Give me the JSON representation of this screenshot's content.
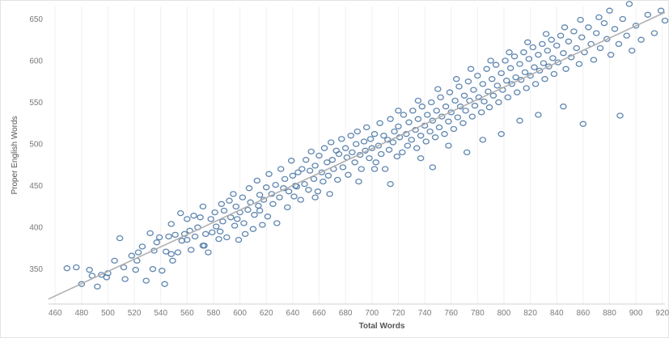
{
  "chart_data": {
    "type": "scatter",
    "title": "",
    "xlabel": "Total Words",
    "ylabel": "Proper English Words",
    "xlim": [
      455,
      922
    ],
    "ylim": [
      308,
      665
    ],
    "xticks": [
      460,
      480,
      500,
      520,
      540,
      560,
      580,
      600,
      620,
      640,
      660,
      680,
      700,
      720,
      740,
      760,
      780,
      800,
      820,
      840,
      860,
      880,
      900,
      920
    ],
    "yticks": [
      350,
      400,
      450,
      500,
      550,
      600,
      650
    ],
    "grid": "vertical",
    "legend": "none",
    "colors": {
      "points": "#4e79a7",
      "trend": "#b0b0b0",
      "axis": "#d0d0d0",
      "grid": "#f0f0f0"
    },
    "trend_line": {
      "x": [
        455,
        922
      ],
      "y": [
        314,
        658
      ]
    },
    "series": [
      {
        "points": [
          [
            469,
            351
          ],
          [
            476,
            352
          ],
          [
            480,
            332
          ],
          [
            486,
            349
          ],
          [
            492,
            329
          ],
          [
            495,
            343
          ],
          [
            499,
            340
          ],
          [
            505,
            360
          ],
          [
            509,
            387
          ],
          [
            513,
            338
          ],
          [
            518,
            366
          ],
          [
            521,
            349
          ],
          [
            523,
            370
          ],
          [
            526,
            377
          ],
          [
            529,
            336
          ],
          [
            532,
            393
          ],
          [
            534,
            350
          ],
          [
            537,
            382
          ],
          [
            539,
            388
          ],
          [
            541,
            348
          ],
          [
            543,
            332
          ],
          [
            544,
            371
          ],
          [
            546,
            389
          ],
          [
            548,
            404
          ],
          [
            549,
            360
          ],
          [
            551,
            391
          ],
          [
            553,
            370
          ],
          [
            555,
            417
          ],
          [
            556,
            384
          ],
          [
            558,
            392
          ],
          [
            560,
            410
          ],
          [
            562,
            396
          ],
          [
            563,
            373
          ],
          [
            565,
            414
          ],
          [
            566,
            389
          ],
          [
            568,
            400
          ],
          [
            570,
            412
          ],
          [
            572,
            425
          ],
          [
            573,
            378
          ],
          [
            574,
            392
          ],
          [
            576,
            370
          ],
          [
            578,
            410
          ],
          [
            579,
            394
          ],
          [
            581,
            418
          ],
          [
            582,
            401
          ],
          [
            584,
            386
          ],
          [
            586,
            428
          ],
          [
            587,
            407
          ],
          [
            588,
            420
          ],
          [
            590,
            388
          ],
          [
            592,
            432
          ],
          [
            593,
            412
          ],
          [
            595,
            440
          ],
          [
            596,
            402
          ],
          [
            597,
            425
          ],
          [
            599,
            385
          ],
          [
            600,
            418
          ],
          [
            602,
            436
          ],
          [
            603,
            405
          ],
          [
            604,
            392
          ],
          [
            606,
            421
          ],
          [
            607,
            447
          ],
          [
            608,
            430
          ],
          [
            610,
            398
          ],
          [
            611,
            415
          ],
          [
            613,
            456
          ],
          [
            614,
            426
          ],
          [
            615,
            439
          ],
          [
            617,
            403
          ],
          [
            618,
            433
          ],
          [
            620,
            448
          ],
          [
            621,
            413
          ],
          [
            622,
            464
          ],
          [
            624,
            440
          ],
          [
            625,
            428
          ],
          [
            627,
            451
          ],
          [
            628,
            405
          ],
          [
            630,
            436
          ],
          [
            631,
            470
          ],
          [
            633,
            447
          ],
          [
            634,
            458
          ],
          [
            636,
            424
          ],
          [
            637,
            443
          ],
          [
            639,
            480
          ],
          [
            640,
            462
          ],
          [
            641,
            437
          ],
          [
            643,
            449
          ],
          [
            644,
            466
          ],
          [
            646,
            433
          ],
          [
            647,
            470
          ],
          [
            649,
            452
          ],
          [
            650,
            481
          ],
          [
            652,
            445
          ],
          [
            653,
            468
          ],
          [
            654,
            491
          ],
          [
            656,
            458
          ],
          [
            657,
            474
          ],
          [
            659,
            443
          ],
          [
            660,
            486
          ],
          [
            662,
            466
          ],
          [
            663,
            455
          ],
          [
            664,
            495
          ],
          [
            666,
            478
          ],
          [
            667,
            462
          ],
          [
            669,
            502
          ],
          [
            670,
            481
          ],
          [
            671,
            470
          ],
          [
            673,
            492
          ],
          [
            674,
            457
          ],
          [
            675,
            488
          ],
          [
            677,
            506
          ],
          [
            678,
            472
          ],
          [
            680,
            495
          ],
          [
            681,
            484
          ],
          [
            682,
            463
          ],
          [
            684,
            510
          ],
          [
            685,
            490
          ],
          [
            687,
            478
          ],
          [
            688,
            500
          ],
          [
            689,
            515
          ],
          [
            691,
            487
          ],
          [
            692,
            470
          ],
          [
            694,
            503
          ],
          [
            695,
            492
          ],
          [
            696,
            520
          ],
          [
            698,
            483
          ],
          [
            699,
            506
          ],
          [
            700,
            495
          ],
          [
            702,
            512
          ],
          [
            703,
            478
          ],
          [
            705,
            498
          ],
          [
            706,
            525
          ],
          [
            707,
            488
          ],
          [
            709,
            510
          ],
          [
            710,
            470
          ],
          [
            712,
            505
          ],
          [
            713,
            493
          ],
          [
            714,
            530
          ],
          [
            716,
            502
          ],
          [
            717,
            515
          ],
          [
            719,
            485
          ],
          [
            720,
            521
          ],
          [
            721,
            508
          ],
          [
            723,
            490
          ],
          [
            724,
            535
          ],
          [
            726,
            512
          ],
          [
            727,
            498
          ],
          [
            728,
            526
          ],
          [
            730,
            505
          ],
          [
            731,
            540
          ],
          [
            733,
            517
          ],
          [
            734,
            495
          ],
          [
            735,
            530
          ],
          [
            737,
            510
          ],
          [
            738,
            545
          ],
          [
            740,
            522
          ],
          [
            741,
            503
          ],
          [
            742,
            535
          ],
          [
            744,
            515
          ],
          [
            745,
            550
          ],
          [
            746,
            528
          ],
          [
            748,
            508
          ],
          [
            749,
            540
          ],
          [
            751,
            520
          ],
          [
            752,
            556
          ],
          [
            753,
            533
          ],
          [
            755,
            512
          ],
          [
            756,
            545
          ],
          [
            758,
            527
          ],
          [
            759,
            562
          ],
          [
            760,
            538
          ],
          [
            762,
            518
          ],
          [
            763,
            552
          ],
          [
            765,
            532
          ],
          [
            766,
            569
          ],
          [
            767,
            545
          ],
          [
            769,
            525
          ],
          [
            770,
            558
          ],
          [
            771,
            540
          ],
          [
            773,
            575
          ],
          [
            774,
            552
          ],
          [
            776,
            533
          ],
          [
            777,
            565
          ],
          [
            778,
            546
          ],
          [
            780,
            582
          ],
          [
            781,
            556
          ],
          [
            783,
            538
          ],
          [
            784,
            572
          ],
          [
            785,
            551
          ],
          [
            787,
            590
          ],
          [
            788,
            563
          ],
          [
            789,
            544
          ],
          [
            791,
            578
          ],
          [
            792,
            558
          ],
          [
            794,
            595
          ],
          [
            795,
            570
          ],
          [
            796,
            550
          ],
          [
            798,
            585
          ],
          [
            799,
            565
          ],
          [
            801,
            600
          ],
          [
            802,
            576
          ],
          [
            803,
            556
          ],
          [
            805,
            591
          ],
          [
            806,
            572
          ],
          [
            808,
            605
          ],
          [
            809,
            580
          ],
          [
            810,
            562
          ],
          [
            812,
            596
          ],
          [
            813,
            577
          ],
          [
            815,
            610
          ],
          [
            816,
            586
          ],
          [
            817,
            567
          ],
          [
            819,
            602
          ],
          [
            820,
            582
          ],
          [
            822,
            616
          ],
          [
            823,
            592
          ],
          [
            824,
            572
          ],
          [
            826,
            607
          ],
          [
            827,
            588
          ],
          [
            829,
            620
          ],
          [
            830,
            597
          ],
          [
            831,
            578
          ],
          [
            833,
            612
          ],
          [
            834,
            593
          ],
          [
            836,
            625
          ],
          [
            837,
            603
          ],
          [
            838,
            584
          ],
          [
            840,
            618
          ],
          [
            841,
            598
          ],
          [
            843,
            630
          ],
          [
            845,
            609
          ],
          [
            847,
            590
          ],
          [
            849,
            623
          ],
          [
            851,
            604
          ],
          [
            853,
            635
          ],
          [
            855,
            615
          ],
          [
            857,
            596
          ],
          [
            859,
            628
          ],
          [
            861,
            610
          ],
          [
            864,
            640
          ],
          [
            866,
            620
          ],
          [
            868,
            601
          ],
          [
            870,
            633
          ],
          [
            873,
            615
          ],
          [
            876,
            645
          ],
          [
            878,
            626
          ],
          [
            881,
            607
          ],
          [
            884,
            638
          ],
          [
            887,
            620
          ],
          [
            890,
            650
          ],
          [
            893,
            630
          ],
          [
            897,
            612
          ],
          [
            900,
            642
          ],
          [
            904,
            625
          ],
          [
            909,
            655
          ],
          [
            914,
            633
          ],
          [
            919,
            660
          ],
          [
            922,
            648
          ],
          [
            668,
            440
          ],
          [
            714,
            452
          ],
          [
            737,
            483
          ],
          [
            746,
            472
          ],
          [
            758,
            498
          ],
          [
            772,
            490
          ],
          [
            784,
            505
          ],
          [
            798,
            512
          ],
          [
            812,
            528
          ],
          [
            826,
            535
          ],
          [
            845,
            545
          ],
          [
            860,
            524
          ],
          [
            888,
            534
          ],
          [
            702,
            470
          ],
          [
            690,
            455
          ],
          [
            657,
            436
          ],
          [
            642,
            450
          ],
          [
            615,
            420
          ],
          [
            598,
            410
          ],
          [
            585,
            395
          ],
          [
            572,
            378
          ],
          [
            560,
            385
          ],
          [
            548,
            368
          ],
          [
            535,
            372
          ],
          [
            522,
            360
          ],
          [
            512,
            352
          ],
          [
            500,
            345
          ],
          [
            488,
            342
          ],
          [
            720,
            540
          ],
          [
            735,
            552
          ],
          [
            750,
            566
          ],
          [
            764,
            578
          ],
          [
            775,
            590
          ],
          [
            790,
            600
          ],
          [
            804,
            610
          ],
          [
            818,
            622
          ],
          [
            832,
            632
          ],
          [
            846,
            640
          ],
          [
            858,
            649
          ],
          [
            872,
            652
          ],
          [
            880,
            660
          ],
          [
            895,
            668
          ]
        ]
      }
    ]
  }
}
